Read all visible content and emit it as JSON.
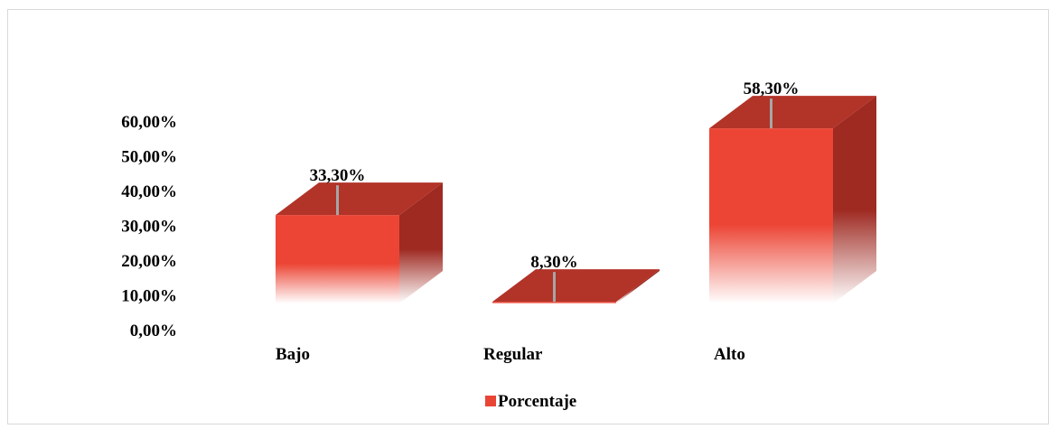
{
  "chart_data": {
    "type": "bar",
    "variant": "3d-column",
    "categories": [
      "Bajo",
      "Regular",
      "Alto"
    ],
    "series": [
      {
        "name": "Porcentaje",
        "values": [
          33.3,
          8.3,
          58.3
        ],
        "color": "#e84535"
      }
    ],
    "data_labels": [
      "33,30%",
      "8,30%",
      "58,30%"
    ],
    "y_ticks": [
      "0,00%",
      "10,00%",
      "20,00%",
      "30,00%",
      "40,00%",
      "50,00%",
      "60,00%"
    ],
    "ylim": [
      0,
      60
    ],
    "grid": false,
    "legend": "bottom-center",
    "title": "",
    "xlabel": "",
    "ylabel": ""
  }
}
